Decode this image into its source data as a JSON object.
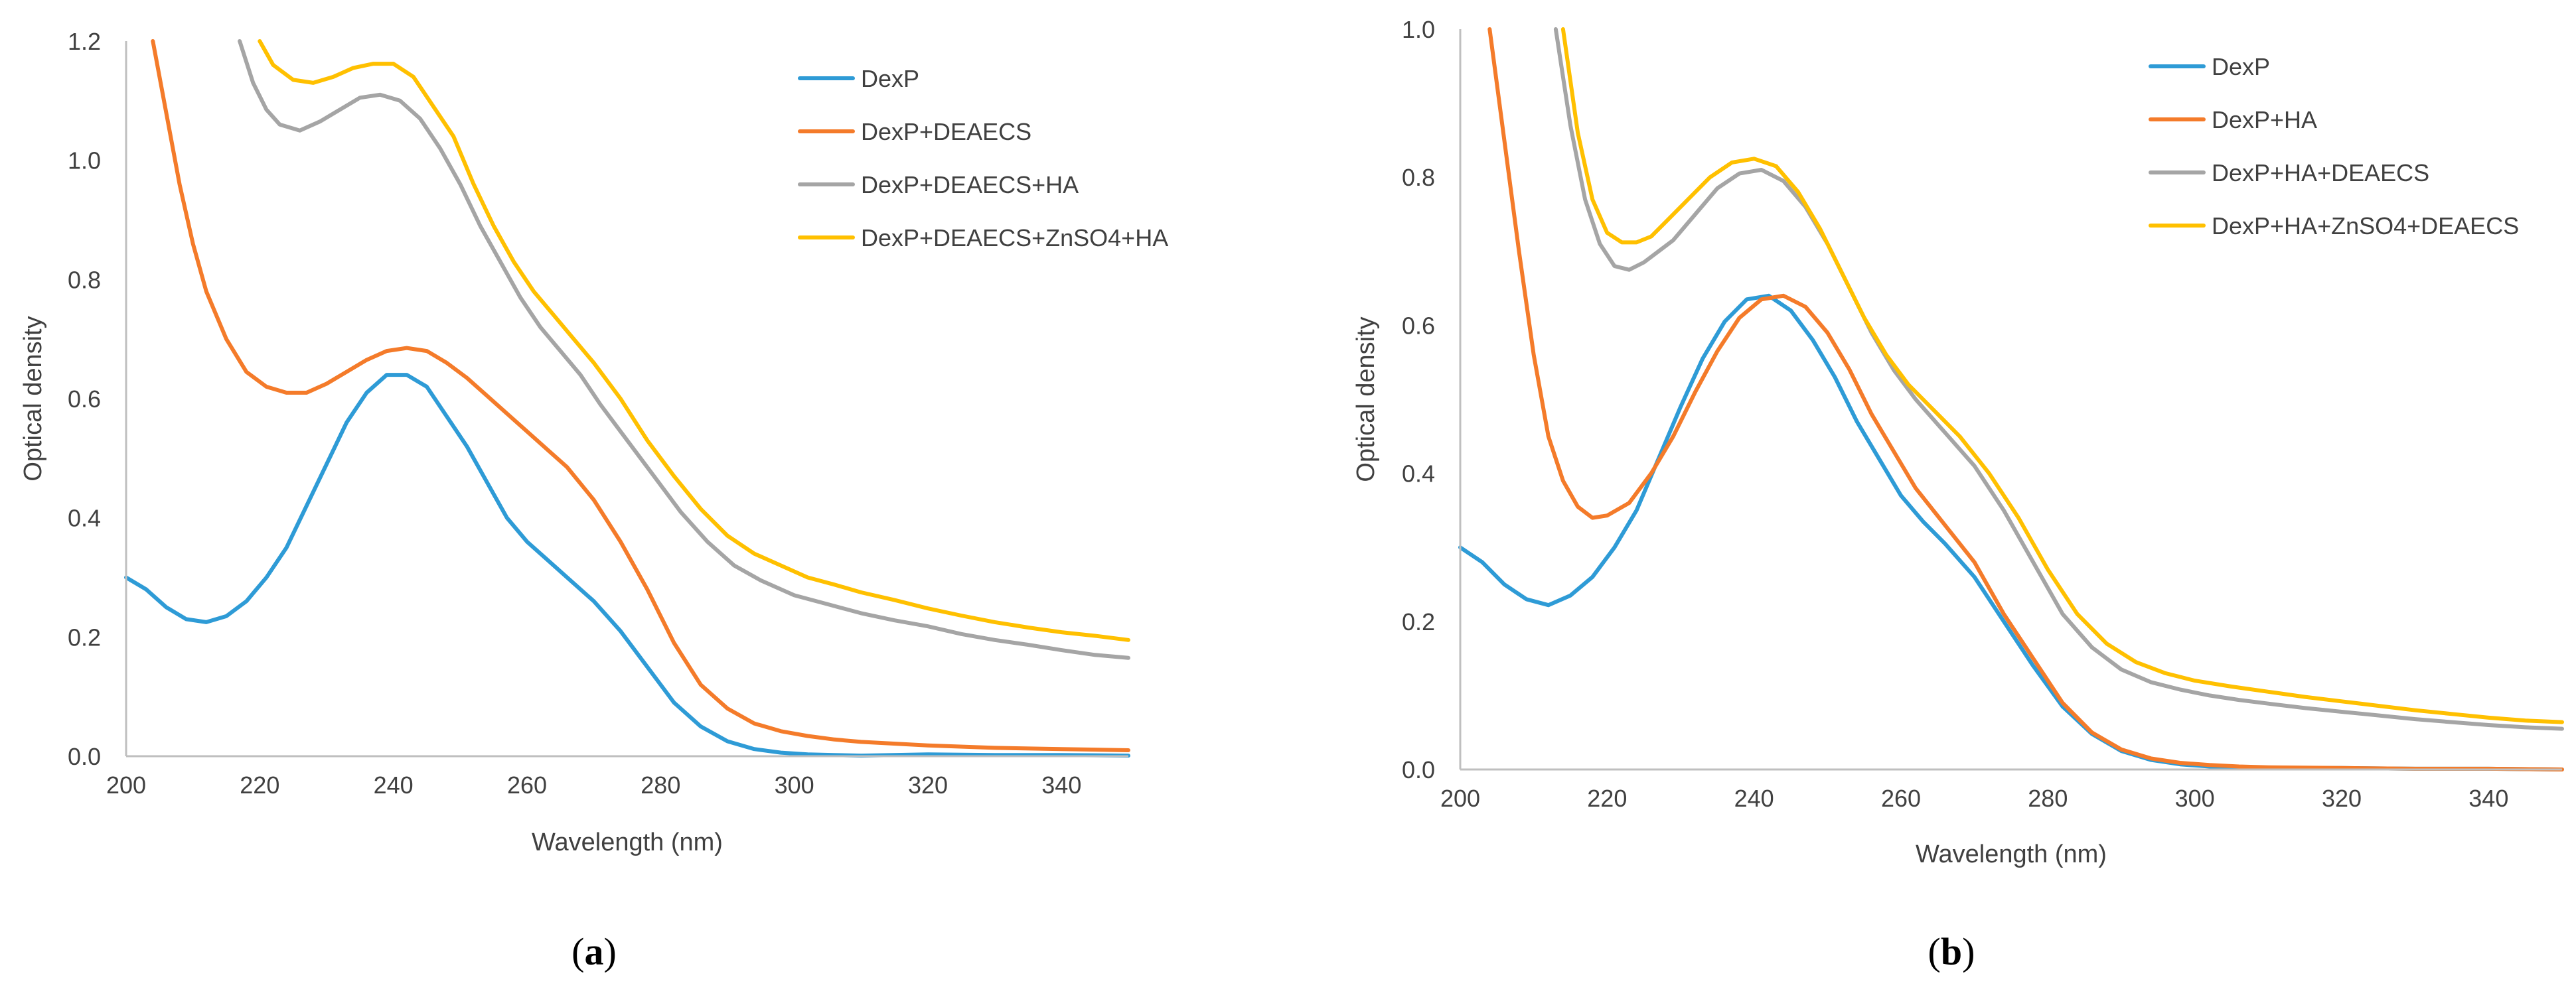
{
  "chart_data": [
    {
      "type": "line",
      "caption_open": "(",
      "caption_letter": "a",
      "caption_close": ")",
      "xlabel": "Wavelength (nm)",
      "ylabel": "Optical density",
      "xlim": [
        200,
        350
      ],
      "ylim": [
        0,
        1.2
      ],
      "xticks": [
        200,
        220,
        240,
        260,
        280,
        300,
        320,
        340
      ],
      "xtick_labels": [
        "200",
        "220",
        "240",
        "260",
        "280",
        "300",
        "320",
        "340"
      ],
      "yticks": [
        0,
        0.2,
        0.4,
        0.6,
        0.8,
        1.0,
        1.2
      ],
      "ytick_labels": [
        "0.0",
        "0.2",
        "0.4",
        "0.6",
        "0.8",
        "1.0",
        "1.2"
      ],
      "legend_position": "top-right",
      "series": [
        {
          "name": "DexP",
          "color": "#2E9BD6",
          "x": [
            200,
            203,
            206,
            209,
            212,
            215,
            218,
            221,
            224,
            227,
            230,
            233,
            236,
            239,
            242,
            245,
            248,
            251,
            254,
            257,
            260,
            263,
            266,
            270,
            274,
            278,
            282,
            286,
            290,
            294,
            298,
            302,
            306,
            310,
            320,
            330,
            340,
            350
          ],
          "y": [
            0.3,
            0.28,
            0.25,
            0.23,
            0.225,
            0.235,
            0.26,
            0.3,
            0.35,
            0.42,
            0.49,
            0.56,
            0.61,
            0.64,
            0.64,
            0.62,
            0.57,
            0.52,
            0.46,
            0.4,
            0.36,
            0.33,
            0.3,
            0.26,
            0.21,
            0.15,
            0.09,
            0.05,
            0.025,
            0.012,
            0.006,
            0.003,
            0.002,
            0.001,
            0.003,
            0.002,
            0.002,
            0.001
          ]
        },
        {
          "name": "DexP+DEAECS",
          "color": "#F47B2A",
          "x": [
            204,
            206,
            208,
            210,
            212,
            215,
            218,
            221,
            224,
            227,
            230,
            233,
            236,
            239,
            242,
            245,
            248,
            251,
            254,
            257,
            260,
            263,
            266,
            270,
            274,
            278,
            282,
            286,
            290,
            294,
            298,
            302,
            306,
            310,
            320,
            330,
            340,
            350
          ],
          "y": [
            1.2,
            1.08,
            0.96,
            0.86,
            0.78,
            0.7,
            0.645,
            0.62,
            0.61,
            0.61,
            0.625,
            0.645,
            0.665,
            0.68,
            0.685,
            0.68,
            0.66,
            0.635,
            0.605,
            0.575,
            0.545,
            0.515,
            0.485,
            0.43,
            0.36,
            0.28,
            0.19,
            0.12,
            0.08,
            0.055,
            0.042,
            0.034,
            0.028,
            0.024,
            0.018,
            0.014,
            0.012,
            0.01
          ]
        },
        {
          "name": "DexP+DEAECS+HA",
          "color": "#A5A5A5",
          "x": [
            217,
            219,
            221,
            223,
            226,
            229,
            232,
            235,
            238,
            241,
            244,
            247,
            250,
            253,
            256,
            259,
            262,
            265,
            268,
            271,
            275,
            279,
            283,
            287,
            291,
            295,
            300,
            305,
            310,
            315,
            320,
            325,
            330,
            335,
            340,
            345,
            350
          ],
          "y": [
            1.2,
            1.13,
            1.085,
            1.06,
            1.05,
            1.065,
            1.085,
            1.105,
            1.11,
            1.1,
            1.07,
            1.02,
            0.96,
            0.89,
            0.83,
            0.77,
            0.72,
            0.68,
            0.64,
            0.59,
            0.53,
            0.47,
            0.41,
            0.36,
            0.32,
            0.295,
            0.27,
            0.255,
            0.24,
            0.228,
            0.218,
            0.205,
            0.195,
            0.187,
            0.178,
            0.17,
            0.165
          ]
        },
        {
          "name": "DexP+DEAECS+ZnSO4+HA",
          "color": "#FFC000",
          "x": [
            220,
            222,
            225,
            228,
            231,
            234,
            237,
            240,
            243,
            246,
            249,
            252,
            255,
            258,
            261,
            264,
            267,
            270,
            274,
            278,
            282,
            286,
            290,
            294,
            298,
            302,
            306,
            310,
            315,
            320,
            325,
            330,
            335,
            340,
            345,
            350
          ],
          "y": [
            1.2,
            1.16,
            1.135,
            1.13,
            1.14,
            1.155,
            1.162,
            1.162,
            1.14,
            1.09,
            1.04,
            0.96,
            0.89,
            0.83,
            0.78,
            0.74,
            0.7,
            0.66,
            0.6,
            0.53,
            0.47,
            0.415,
            0.37,
            0.34,
            0.32,
            0.3,
            0.288,
            0.275,
            0.262,
            0.248,
            0.236,
            0.225,
            0.216,
            0.208,
            0.202,
            0.195
          ]
        }
      ]
    },
    {
      "type": "line",
      "caption_open": "(",
      "caption_letter": "b",
      "caption_close": ")",
      "xlabel": "Wavelength (nm)",
      "ylabel": "Optical density",
      "xlim": [
        200,
        350
      ],
      "ylim": [
        0,
        1.0
      ],
      "xticks": [
        200,
        220,
        240,
        260,
        280,
        300,
        320,
        340
      ],
      "xtick_labels": [
        "200",
        "220",
        "240",
        "260",
        "280",
        "300",
        "320",
        "340"
      ],
      "yticks": [
        0,
        0.2,
        0.4,
        0.6,
        0.8,
        1.0
      ],
      "ytick_labels": [
        "0.0",
        "0.2",
        "0.4",
        "0.6",
        "0.8",
        "1.0"
      ],
      "legend_position": "top-right",
      "series": [
        {
          "name": "DexP",
          "color": "#2E9BD6",
          "x": [
            200,
            203,
            206,
            209,
            212,
            215,
            218,
            221,
            224,
            227,
            230,
            233,
            236,
            239,
            242,
            245,
            248,
            251,
            254,
            257,
            260,
            263,
            266,
            270,
            274,
            278,
            282,
            286,
            290,
            294,
            298,
            302,
            306,
            310,
            320,
            330,
            340,
            350
          ],
          "y": [
            0.3,
            0.28,
            0.25,
            0.23,
            0.222,
            0.235,
            0.26,
            0.3,
            0.35,
            0.42,
            0.49,
            0.555,
            0.605,
            0.635,
            0.64,
            0.62,
            0.58,
            0.53,
            0.47,
            0.42,
            0.37,
            0.335,
            0.305,
            0.26,
            0.2,
            0.14,
            0.085,
            0.048,
            0.025,
            0.013,
            0.007,
            0.004,
            0.003,
            0.002,
            0.002,
            0.001,
            0.001,
            0.0
          ]
        },
        {
          "name": "DexP+HA",
          "color": "#F47B2A",
          "x": [
            204,
            206,
            208,
            210,
            212,
            214,
            216,
            218,
            220,
            223,
            226,
            229,
            232,
            235,
            238,
            241,
            244,
            247,
            250,
            253,
            256,
            259,
            262,
            266,
            270,
            274,
            278,
            282,
            286,
            290,
            294,
            298,
            302,
            306,
            310,
            320,
            330,
            340,
            350
          ],
          "y": [
            1.0,
            0.85,
            0.7,
            0.56,
            0.45,
            0.39,
            0.355,
            0.34,
            0.343,
            0.36,
            0.4,
            0.45,
            0.51,
            0.565,
            0.61,
            0.635,
            0.64,
            0.625,
            0.59,
            0.54,
            0.48,
            0.43,
            0.38,
            0.33,
            0.28,
            0.21,
            0.15,
            0.09,
            0.05,
            0.027,
            0.015,
            0.009,
            0.006,
            0.004,
            0.003,
            0.002,
            0.001,
            0.001,
            0.0
          ]
        },
        {
          "name": "DexP+HA+DEAECS",
          "color": "#A5A5A5",
          "x": [
            213,
            215,
            217,
            219,
            221,
            223,
            225,
            227,
            229,
            232,
            235,
            238,
            241,
            244,
            247,
            250,
            253,
            256,
            259,
            262,
            266,
            270,
            274,
            278,
            282,
            286,
            290,
            294,
            298,
            302,
            306,
            310,
            315,
            320,
            325,
            330,
            335,
            340,
            345,
            350
          ],
          "y": [
            1.0,
            0.87,
            0.77,
            0.71,
            0.68,
            0.675,
            0.685,
            0.7,
            0.715,
            0.75,
            0.785,
            0.805,
            0.81,
            0.795,
            0.76,
            0.71,
            0.65,
            0.59,
            0.54,
            0.5,
            0.455,
            0.41,
            0.35,
            0.28,
            0.21,
            0.165,
            0.135,
            0.118,
            0.108,
            0.1,
            0.094,
            0.089,
            0.083,
            0.078,
            0.073,
            0.068,
            0.064,
            0.06,
            0.057,
            0.055
          ]
        },
        {
          "name": "DexP+HA+ZnSO4+DEAECS",
          "color": "#FFC000",
          "x": [
            214,
            216,
            218,
            220,
            222,
            224,
            226,
            228,
            231,
            234,
            237,
            240,
            243,
            246,
            249,
            252,
            255,
            258,
            261,
            264,
            268,
            272,
            276,
            280,
            284,
            288,
            292,
            296,
            300,
            305,
            310,
            315,
            320,
            325,
            330,
            335,
            340,
            345,
            350
          ],
          "y": [
            1.0,
            0.86,
            0.77,
            0.725,
            0.712,
            0.712,
            0.72,
            0.74,
            0.77,
            0.8,
            0.82,
            0.825,
            0.815,
            0.78,
            0.73,
            0.67,
            0.61,
            0.56,
            0.52,
            0.49,
            0.45,
            0.4,
            0.34,
            0.27,
            0.21,
            0.17,
            0.145,
            0.13,
            0.12,
            0.112,
            0.105,
            0.098,
            0.092,
            0.086,
            0.08,
            0.075,
            0.07,
            0.066,
            0.064
          ]
        }
      ]
    }
  ]
}
